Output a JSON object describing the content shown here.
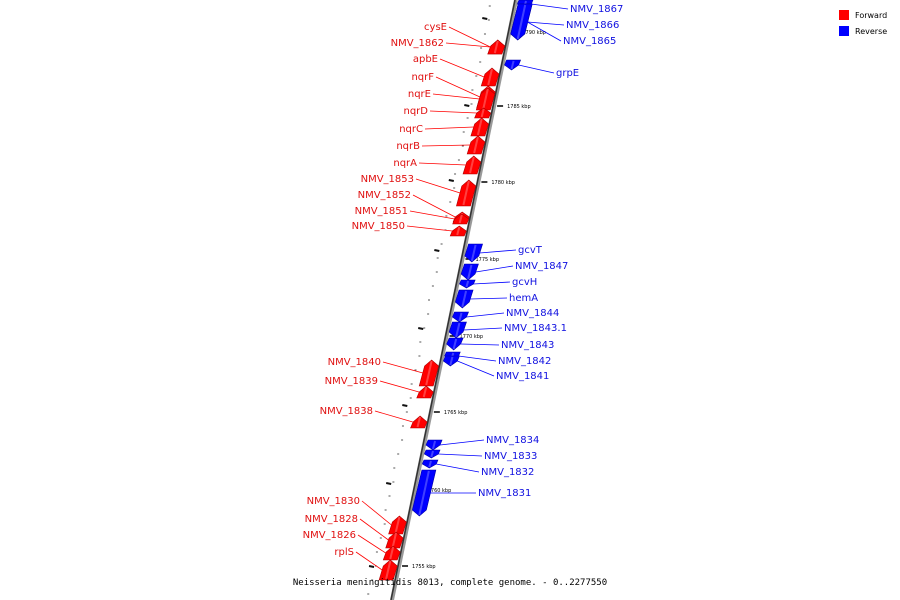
{
  "legend": {
    "forward": {
      "label": "Forward",
      "color": "#ff0000"
    },
    "reverse": {
      "label": "Reverse",
      "color": "#0000ff"
    }
  },
  "caption": "Neisseria meningitidis 8013, complete genome. - 0..2277550",
  "genes": [
    {
      "name": "NMV_1867",
      "strand": "reverse"
    },
    {
      "name": "NMV_1866",
      "strand": "reverse"
    },
    {
      "name": "NMV_1865",
      "strand": "reverse"
    },
    {
      "name": "cysE",
      "strand": "forward"
    },
    {
      "name": "NMV_1862",
      "strand": "forward"
    },
    {
      "name": "grpE",
      "strand": "reverse"
    },
    {
      "name": "apbE",
      "strand": "forward"
    },
    {
      "name": "nqrF",
      "strand": "forward"
    },
    {
      "name": "nqrE",
      "strand": "forward"
    },
    {
      "name": "nqrD",
      "strand": "forward"
    },
    {
      "name": "nqrC",
      "strand": "forward"
    },
    {
      "name": "nqrB",
      "strand": "forward"
    },
    {
      "name": "nqrA",
      "strand": "forward"
    },
    {
      "name": "NMV_1853",
      "strand": "forward"
    },
    {
      "name": "NMV_1852",
      "strand": "forward"
    },
    {
      "name": "NMV_1851",
      "strand": "forward"
    },
    {
      "name": "NMV_1850",
      "strand": "forward"
    },
    {
      "name": "gcvT",
      "strand": "reverse"
    },
    {
      "name": "NMV_1847",
      "strand": "reverse"
    },
    {
      "name": "gcvH",
      "strand": "reverse"
    },
    {
      "name": "hemA",
      "strand": "reverse"
    },
    {
      "name": "NMV_1844",
      "strand": "reverse"
    },
    {
      "name": "NMV_1843.1",
      "strand": "reverse"
    },
    {
      "name": "NMV_1843",
      "strand": "reverse"
    },
    {
      "name": "NMV_1842",
      "strand": "reverse"
    },
    {
      "name": "NMV_1841",
      "strand": "reverse"
    },
    {
      "name": "NMV_1840",
      "strand": "forward"
    },
    {
      "name": "NMV_1839",
      "strand": "forward"
    },
    {
      "name": "NMV_1838",
      "strand": "forward"
    },
    {
      "name": "NMV_1834",
      "strand": "reverse"
    },
    {
      "name": "NMV_1833",
      "strand": "reverse"
    },
    {
      "name": "NMV_1832",
      "strand": "reverse"
    },
    {
      "name": "NMV_1831",
      "strand": "reverse"
    },
    {
      "name": "NMV_1830",
      "strand": "forward"
    },
    {
      "name": "NMV_1828",
      "strand": "forward"
    },
    {
      "name": "NMV_1826",
      "strand": "forward"
    },
    {
      "name": "rplS",
      "strand": "forward"
    }
  ],
  "ticks": [
    "1790 kbp",
    "1785 kbp",
    "1780 kbp",
    "1775 kbp",
    "1770 kbp",
    "1765 kbp",
    "1760 kbp",
    "1755 kbp"
  ]
}
